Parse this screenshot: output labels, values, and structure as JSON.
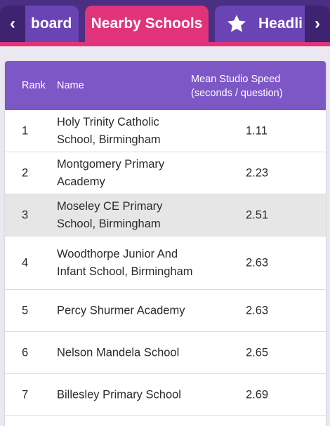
{
  "tabs": {
    "left": "board",
    "active": "Nearby Schools",
    "right": "Headli",
    "scroll_left": "‹",
    "scroll_right": "›"
  },
  "icons": {
    "star": "star-icon"
  },
  "colors": {
    "header_bg": "#4a2f82",
    "tab_bg": "#6a44b5",
    "active_tab": "#e0337a",
    "table_head": "#7d57c6",
    "highlight_row": "#e6e6e6"
  },
  "table": {
    "headers": {
      "rank": "Rank",
      "name": "Name",
      "speed_line1": "Mean Studio Speed",
      "speed_line2": "(seconds / question)"
    },
    "rows": [
      {
        "rank": "1",
        "name": "Holy Trinity Catholic School, Birmingham",
        "speed": "1.11"
      },
      {
        "rank": "2",
        "name": "Montgomery Primary Academy",
        "speed": "2.23"
      },
      {
        "rank": "3",
        "name": "Moseley CE Primary School, Birmingham",
        "speed": "2.51"
      },
      {
        "rank": "4",
        "name": "Woodthorpe Junior And Infant School, Birmingham",
        "speed": "2.63"
      },
      {
        "rank": "5",
        "name": "Percy Shurmer Academy",
        "speed": "2.63"
      },
      {
        "rank": "6",
        "name": "Nelson Mandela School",
        "speed": "2.65"
      },
      {
        "rank": "7",
        "name": "Billesley Primary School",
        "speed": "2.69"
      }
    ]
  }
}
